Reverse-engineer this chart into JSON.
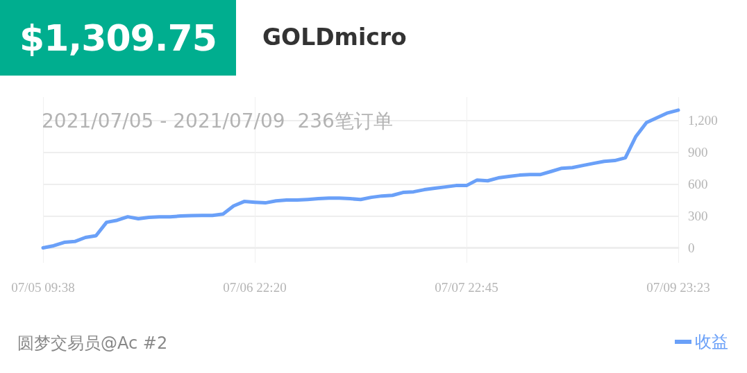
{
  "chart_data": {
    "type": "line",
    "title": "$1,309.75",
    "subtitle": "GOLDmicro",
    "annotations": [
      "2021/07/05 - 2021/07/09  236笔订单",
      "圆梦交易员@Ac #2"
    ],
    "categories": [
      "07/05 09:38",
      null,
      null,
      null,
      null,
      null,
      null,
      null,
      null,
      null,
      null,
      null,
      null,
      null,
      null,
      null,
      null,
      null,
      null,
      null,
      "07/06 22:20",
      null,
      null,
      null,
      null,
      null,
      null,
      null,
      null,
      null,
      null,
      null,
      null,
      null,
      null,
      null,
      null,
      null,
      null,
      null,
      "07/07 22:45",
      null,
      null,
      null,
      null,
      null,
      null,
      null,
      null,
      null,
      null,
      null,
      null,
      null,
      null,
      null,
      null,
      null,
      null,
      null,
      "07/09 23:23"
    ],
    "series": [
      {
        "name": "收益",
        "color": "#6aa0f8",
        "values": [
          0,
          20,
          52,
          60,
          98,
          115,
          241,
          260,
          293,
          274,
          287,
          293,
          293,
          300,
          304,
          306,
          306,
          319,
          395,
          437,
          430,
          424,
          443,
          450,
          450,
          456,
          463,
          469,
          469,
          463,
          456,
          476,
          489,
          495,
          522,
          528,
          548,
          561,
          574,
          587,
          587,
          639,
          632,
          659,
          672,
          685,
          691,
          691,
          720,
          750,
          756,
          776,
          796,
          815,
          822,
          848,
          1050,
          1180,
          1226,
          1271,
          1297
        ]
      }
    ],
    "ylim": [
      -140,
      1420
    ],
    "yticks": [
      0,
      300,
      600,
      900,
      {
        "value": 1200,
        "label": "1,200"
      }
    ],
    "grid": true,
    "legend": "bottom right",
    "marker": "none"
  }
}
